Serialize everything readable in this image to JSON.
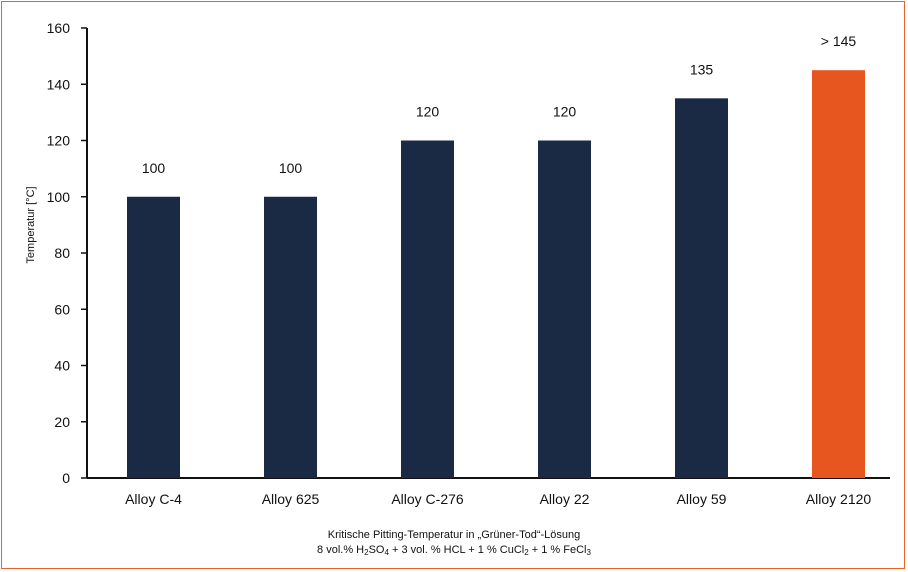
{
  "colors": {
    "bar": "#1a2a44",
    "highlight": "#e8561f",
    "frame": "#e8622a",
    "axis": "#111111"
  },
  "chart_data": {
    "type": "bar",
    "categories": [
      "Alloy C-4",
      "Alloy 625",
      "Alloy C-276",
      "Alloy 22",
      "Alloy 59",
      "Alloy 2120"
    ],
    "values": [
      100,
      100,
      120,
      120,
      135,
      145
    ],
    "value_labels": [
      "100",
      "100",
      "120",
      "120",
      "135",
      "> 145"
    ],
    "highlight_index": 5,
    "ylabel": "Temperatur [°C]",
    "ylim": [
      0,
      160
    ],
    "yticks": [
      0,
      20,
      40,
      60,
      80,
      100,
      120,
      140,
      160
    ],
    "grid": false
  },
  "caption": {
    "line1": "Kritische Pitting-Temperatur in „Grüner-Tod“-Lösung",
    "line2_parts": {
      "p1": "8 vol.% H",
      "s1": "2",
      "p2": "SO",
      "s2": "4",
      "p3": " + 3 vol. % HCL + 1 % CuCl",
      "s3": "2",
      "p4": " + 1 % FeCl",
      "s4": "3"
    }
  }
}
